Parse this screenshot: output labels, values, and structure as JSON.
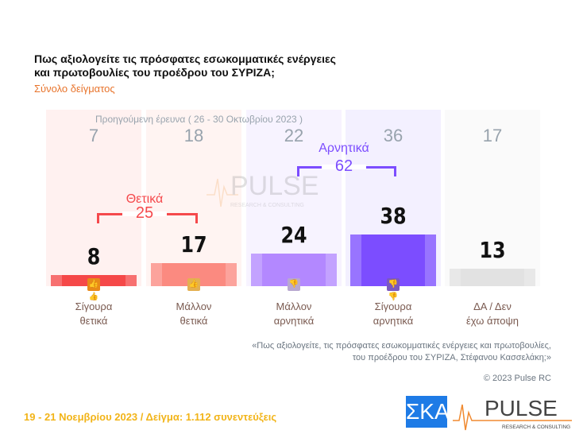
{
  "title_line1": "Πως αξιολογείτε τις πρόσφατες εσωκομματικές ενέργειες",
  "title_line2": "και πρωτοβουλίες του προέδρου του ΣΥΡΙΖΑ;",
  "subtitle": "Σύνολο δείγματος",
  "previous_label": "Προηγούμενη έρευνα  ( 26 - 30 Οκτωβρίου 2023 )",
  "chart_data": {
    "type": "bar",
    "categories": [
      "Σίγουρα θετικά",
      "Μάλλον θετικά",
      "Μάλλον αρνητικά",
      "Σίγουρα αρνητικά",
      "ΔΑ / Δεν έχω άποψη"
    ],
    "category_lines": [
      [
        "Σίγουρα",
        "θετικά"
      ],
      [
        "Μάλλον",
        "θετικά"
      ],
      [
        "Μάλλον",
        "αρνητικά"
      ],
      [
        "Σίγουρα",
        "αρνητικά"
      ],
      [
        "ΔΑ / Δεν",
        "έχω άποψη"
      ]
    ],
    "values": [
      8,
      17,
      24,
      38,
      13
    ],
    "previous_values": [
      7,
      18,
      22,
      36,
      17
    ],
    "colors": [
      "#f54848",
      "#fb8a80",
      "#b388ff",
      "#7c4dff",
      "#e2e2e2"
    ],
    "bg_colors": [
      "#fff1f0",
      "#fff4f2",
      "#f7f3ff",
      "#f3f0ff",
      "#fafafa"
    ],
    "icons": [
      "double-thumbs-up-icon",
      "thumbs-up-icon",
      "thumbs-down-icon",
      "double-thumbs-down-icon"
    ],
    "icon_colors": [
      "#e88a18",
      "#e4b050",
      "#b8a8d0",
      "#7a58c0"
    ],
    "groups": [
      {
        "label": "Θετικά",
        "total": 25,
        "color": "#f5494c"
      },
      {
        "label": "Αρνητικά",
        "total": 62,
        "color": "#7c4dff"
      }
    ]
  },
  "quote_line1": "«Πως αξιολογείτε, τις πρόσφατες εσωκομματικές ενέργειες και πρωτοβουλίες,",
  "quote_line2": "του προέδρου του ΣΥΡΙΖΑ, Στέφανου Κασσελάκη;»",
  "copyright": "© 2023 Pulse RC",
  "footer": "19 - 21  Νοεμβρίου  2023  /  Δείγμα:  1.112 συνεντεύξεις",
  "logos": {
    "skai": "ΣΚΑΪ",
    "pulse": "PULSE",
    "pulse_sub": "RESEARCH & CONSULTING"
  }
}
